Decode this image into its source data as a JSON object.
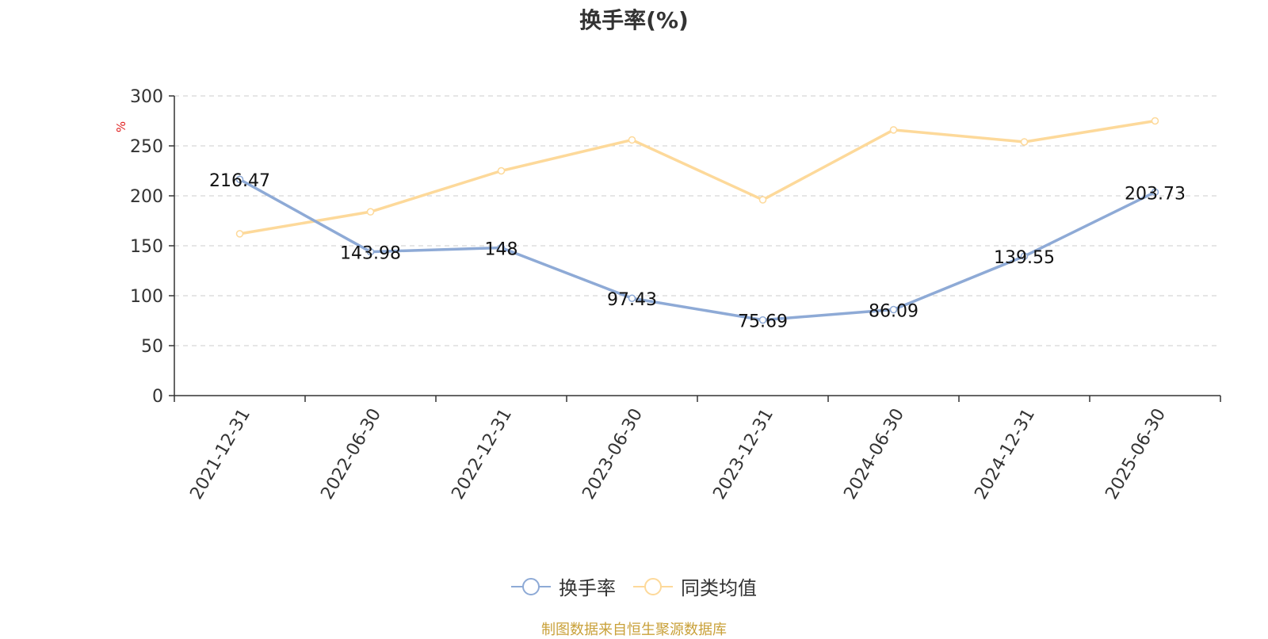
{
  "title": "换手率(%)",
  "source": "制图数据来自恒生聚源数据库",
  "colors": {
    "series1": "#8eaad6",
    "series2": "#fdd99a",
    "unit": "#e02020",
    "source": "#c9a13a"
  },
  "chart_data": {
    "type": "line",
    "title": "换手率(%)",
    "ylabel": "%",
    "xlabel": "",
    "ylim": [
      0,
      300
    ],
    "yticks": [
      "0",
      "50",
      "100",
      "150",
      "200",
      "250",
      "300"
    ],
    "grid": true,
    "legend_position": "bottom",
    "categories": [
      "2021-12-31",
      "2022-06-30",
      "2022-12-31",
      "2023-06-30",
      "2023-12-31",
      "2024-06-30",
      "2024-12-31",
      "2025-06-30"
    ],
    "series": [
      {
        "name": "换手率",
        "values": [
          216.47,
          143.98,
          148,
          97.43,
          75.69,
          86.09,
          139.55,
          203.73
        ],
        "labels": [
          "216.47",
          "143.98",
          "148",
          "97.43",
          "75.69",
          "86.09",
          "139.55",
          "203.73"
        ]
      },
      {
        "name": "同类均值",
        "values": [
          162,
          184,
          225,
          256,
          196,
          266,
          254,
          275
        ]
      }
    ]
  }
}
